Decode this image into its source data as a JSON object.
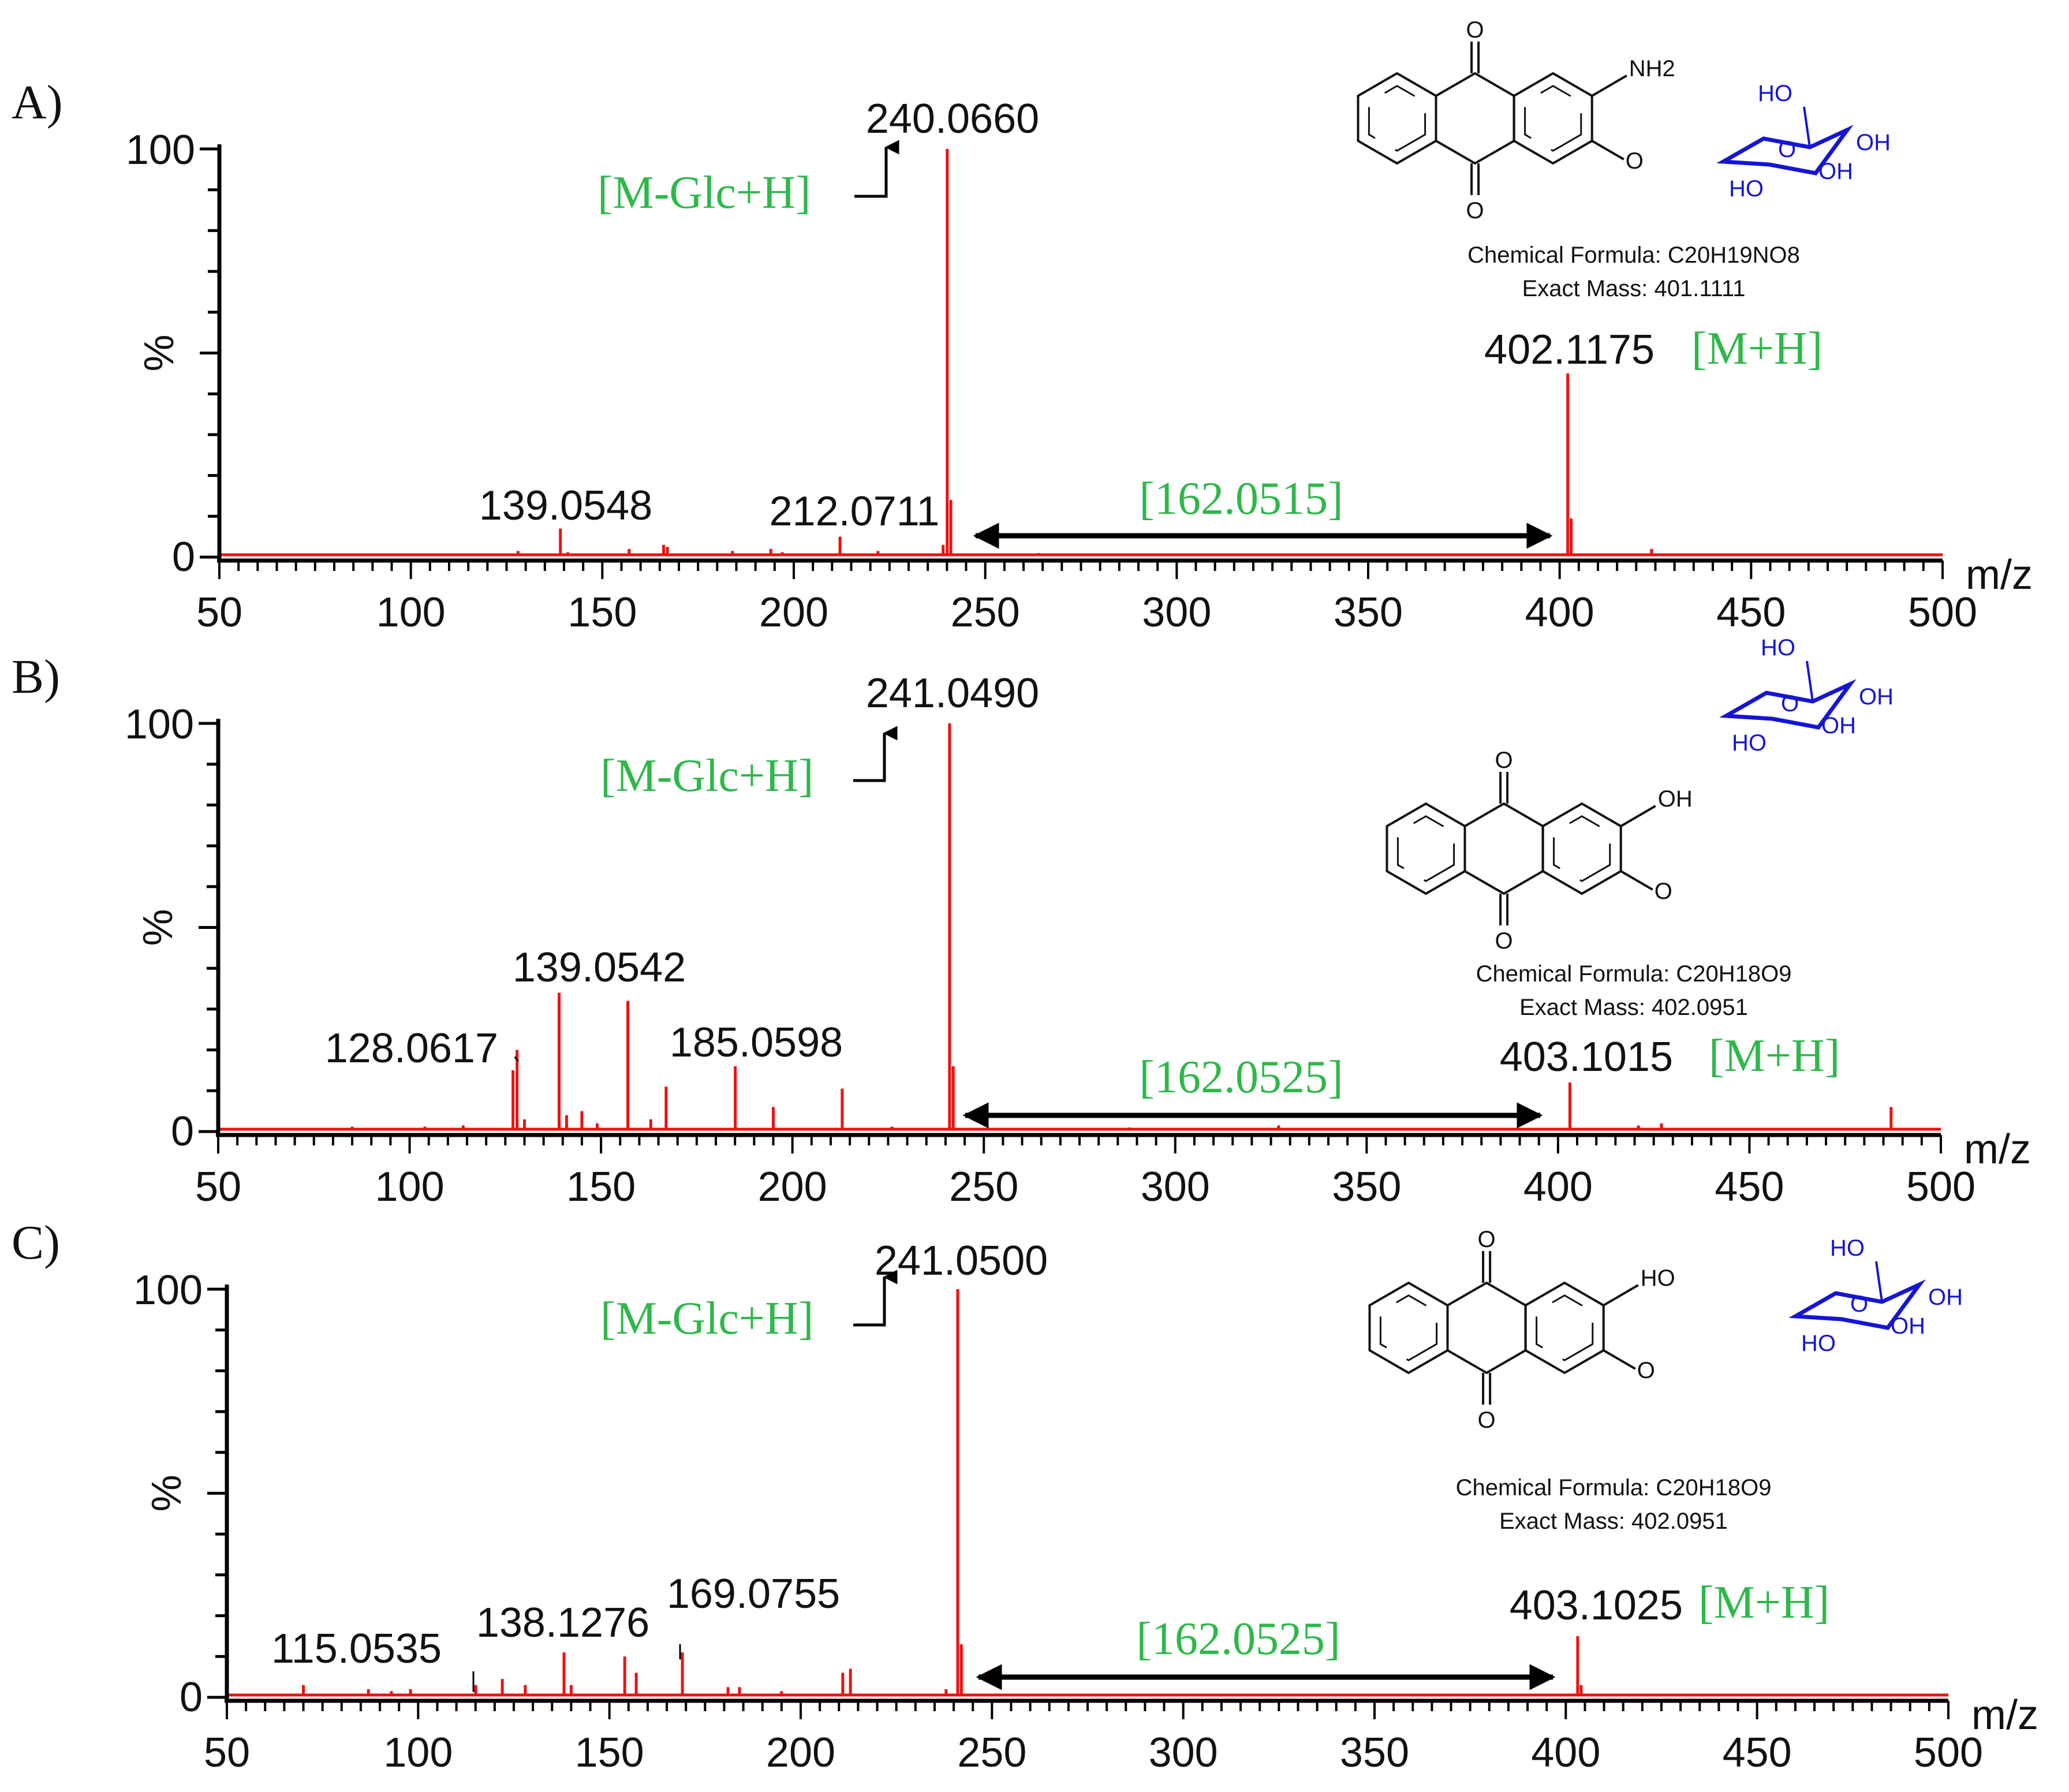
{
  "colors": {
    "peak": "#ee1111",
    "annotation": "#2eb84a",
    "axis": "#000000",
    "glucose": "#1515d6"
  },
  "chart_data": [
    {
      "type": "bar",
      "panel_label": "A)",
      "xlabel": "m/z",
      "ylabel": "%",
      "xlim": [
        50,
        500
      ],
      "ylim": [
        0,
        100
      ],
      "x_ticks": [
        "50",
        "100",
        "150",
        "200",
        "250",
        "300",
        "350",
        "400",
        "450",
        "500"
      ],
      "y_ticks": [
        "0",
        "100"
      ],
      "peaks": [
        {
          "x": 128,
          "y": 1.5
        },
        {
          "x": 139.0548,
          "y": 7
        },
        {
          "x": 141,
          "y": 1.2
        },
        {
          "x": 157,
          "y": 2
        },
        {
          "x": 166,
          "y": 3
        },
        {
          "x": 167,
          "y": 2.5
        },
        {
          "x": 184,
          "y": 1.5
        },
        {
          "x": 194,
          "y": 2
        },
        {
          "x": 197,
          "y": 1.2
        },
        {
          "x": 212.0711,
          "y": 5
        },
        {
          "x": 222,
          "y": 1.5
        },
        {
          "x": 239,
          "y": 3
        },
        {
          "x": 240.066,
          "y": 100
        },
        {
          "x": 241,
          "y": 14
        },
        {
          "x": 264,
          "y": 1
        },
        {
          "x": 402.1175,
          "y": 45
        },
        {
          "x": 403,
          "y": 9.5
        },
        {
          "x": 424,
          "y": 2
        }
      ],
      "peak_labels": [
        "139.0548",
        "212.0711",
        "240.0660",
        "402.1175"
      ],
      "annotations": {
        "fragment": "[M-Glc+H]",
        "parent": "[M+H]",
        "mass_diff": "[162.0515]"
      },
      "structure": {
        "substituents": [
          "O",
          "O",
          "NH2",
          "O",
          "HO",
          "O",
          "OH",
          "OH",
          "HO"
        ],
        "formula_label": "Chemical Formula: C20H19NO8",
        "mass_label": "Exact Mass: 401.1111"
      }
    },
    {
      "type": "bar",
      "panel_label": "B)",
      "xlabel": "m/z",
      "ylabel": "%",
      "xlim": [
        50,
        500
      ],
      "ylim": [
        0,
        100
      ],
      "x_ticks": [
        "50",
        "100",
        "150",
        "200",
        "250",
        "300",
        "350",
        "400",
        "450",
        "500"
      ],
      "y_ticks": [
        "0",
        "100"
      ],
      "peaks": [
        {
          "x": 85,
          "y": 1.2
        },
        {
          "x": 104,
          "y": 1.2
        },
        {
          "x": 114,
          "y": 1.5
        },
        {
          "x": 127,
          "y": 15
        },
        {
          "x": 128.0617,
          "y": 20
        },
        {
          "x": 130,
          "y": 3
        },
        {
          "x": 139.0542,
          "y": 34
        },
        {
          "x": 141,
          "y": 4
        },
        {
          "x": 145,
          "y": 5
        },
        {
          "x": 149,
          "y": 2
        },
        {
          "x": 157,
          "y": 32
        },
        {
          "x": 163,
          "y": 3
        },
        {
          "x": 167,
          "y": 11
        },
        {
          "x": 185.0598,
          "y": 16
        },
        {
          "x": 195,
          "y": 6
        },
        {
          "x": 213,
          "y": 10.5
        },
        {
          "x": 226,
          "y": 1.2
        },
        {
          "x": 241.049,
          "y": 100
        },
        {
          "x": 242,
          "y": 16
        },
        {
          "x": 288,
          "y": 1
        },
        {
          "x": 327,
          "y": 1.5
        },
        {
          "x": 403.1015,
          "y": 12
        },
        {
          "x": 421,
          "y": 1.5
        },
        {
          "x": 427,
          "y": 2
        },
        {
          "x": 487,
          "y": 6
        }
      ],
      "peak_labels": [
        "128.0617",
        "139.0542",
        "185.0598",
        "241.0490",
        "403.1015"
      ],
      "annotations": {
        "fragment": "[M-Glc+H]",
        "parent": "[M+H]",
        "mass_diff": "[162.0525]"
      },
      "structure": {
        "substituents": [
          "O",
          "O",
          "OH",
          "O",
          "HO",
          "O",
          "OH",
          "OH",
          "HO"
        ],
        "formula_label": "Chemical Formula: C20H18O9",
        "mass_label": "Exact Mass: 402.0951"
      }
    },
    {
      "type": "bar",
      "panel_label": "C)",
      "xlabel": "m/z",
      "ylabel": "%",
      "xlim": [
        50,
        500
      ],
      "ylim": [
        0,
        100
      ],
      "x_ticks": [
        "50",
        "100",
        "150",
        "200",
        "250",
        "300",
        "350",
        "400",
        "450",
        "500"
      ],
      "y_ticks": [
        "0",
        "100"
      ],
      "peaks": [
        {
          "x": 70,
          "y": 3
        },
        {
          "x": 87,
          "y": 2
        },
        {
          "x": 93,
          "y": 1.5
        },
        {
          "x": 98,
          "y": 2
        },
        {
          "x": 115.0535,
          "y": 3
        },
        {
          "x": 122,
          "y": 4.5
        },
        {
          "x": 128,
          "y": 3
        },
        {
          "x": 138.1276,
          "y": 11
        },
        {
          "x": 140,
          "y": 3
        },
        {
          "x": 154,
          "y": 10
        },
        {
          "x": 157,
          "y": 6
        },
        {
          "x": 169.0755,
          "y": 11
        },
        {
          "x": 181,
          "y": 2.5
        },
        {
          "x": 184,
          "y": 2.5
        },
        {
          "x": 195,
          "y": 1.5
        },
        {
          "x": 211,
          "y": 6
        },
        {
          "x": 213,
          "y": 7
        },
        {
          "x": 238,
          "y": 2
        },
        {
          "x": 241.05,
          "y": 100
        },
        {
          "x": 242,
          "y": 13
        },
        {
          "x": 403.1025,
          "y": 15
        },
        {
          "x": 404,
          "y": 3
        }
      ],
      "peak_labels": [
        "115.0535",
        "138.1276",
        "169.0755",
        "241.0500",
        "403.1025"
      ],
      "annotations": {
        "fragment": "[M-Glc+H]",
        "parent": "[M+H]",
        "mass_diff": "[162.0525]"
      },
      "structure": {
        "substituents": [
          "O",
          "O",
          "HO",
          "O",
          "HO",
          "O",
          "OH",
          "OH",
          "HO"
        ],
        "formula_label": "Chemical Formula: C20H18O9",
        "mass_label": "Exact Mass: 402.0951"
      }
    }
  ]
}
